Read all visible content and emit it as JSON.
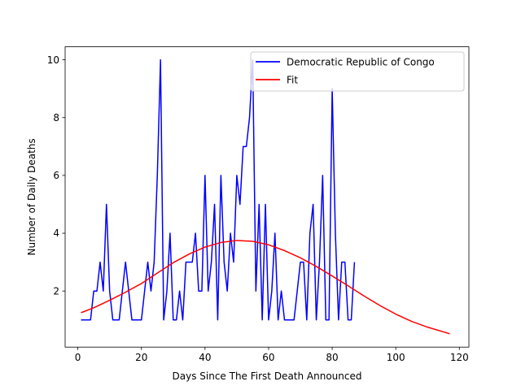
{
  "chart_data": {
    "type": "line",
    "xlabel": "Days Since The First Death Announced",
    "ylabel": "Number of Daily Deaths",
    "xlim": [
      -4,
      123
    ],
    "ylim": [
      0.06,
      10.45
    ],
    "xticks": [
      0,
      20,
      40,
      60,
      80,
      100,
      120
    ],
    "yticks": [
      2,
      4,
      6,
      8,
      10
    ],
    "grid": false,
    "legend_position": "top-right",
    "series": [
      {
        "name": "Democratic Republic of Congo",
        "color": "#0000ff",
        "x": [
          1,
          2,
          3,
          4,
          5,
          6,
          7,
          8,
          9,
          10,
          11,
          12,
          13,
          14,
          15,
          16,
          17,
          18,
          19,
          20,
          21,
          22,
          23,
          24,
          25,
          26,
          27,
          28,
          29,
          30,
          31,
          32,
          33,
          34,
          35,
          36,
          37,
          38,
          39,
          40,
          41,
          42,
          43,
          44,
          45,
          46,
          47,
          48,
          49,
          50,
          51,
          52,
          53,
          54,
          55,
          56,
          57,
          58,
          59,
          60,
          61,
          62,
          63,
          64,
          65,
          66,
          67,
          68,
          69,
          70,
          71,
          72,
          73,
          74,
          75,
          76,
          77,
          78,
          79,
          80,
          81,
          82,
          83,
          84,
          85,
          86,
          87
        ],
        "y": [
          1,
          1,
          1,
          1,
          2,
          2,
          3,
          2,
          5,
          2,
          1,
          1,
          1,
          2,
          3,
          2,
          1,
          1,
          1,
          1,
          2,
          3,
          2,
          3,
          6,
          10,
          1,
          2,
          4,
          1,
          1,
          2,
          1,
          3,
          3,
          3,
          4,
          2,
          2,
          6,
          2,
          3,
          5,
          1,
          6,
          3,
          2,
          4,
          3,
          6,
          5,
          7,
          7,
          8,
          10,
          2,
          5,
          1,
          5,
          1,
          2,
          4,
          1,
          2,
          1,
          1,
          1,
          1,
          2,
          3,
          3,
          1,
          4,
          5,
          1,
          3,
          6,
          1,
          1,
          9,
          4,
          1,
          3,
          3,
          1,
          1,
          3
        ]
      },
      {
        "name": "Fit",
        "color": "#ff0000",
        "x": [
          1,
          5,
          10,
          15,
          20,
          25,
          30,
          35,
          40,
          45,
          50,
          55,
          60,
          65,
          70,
          75,
          80,
          85,
          90,
          95,
          100,
          105,
          110,
          117
        ],
        "y": [
          1.25,
          1.42,
          1.68,
          1.96,
          2.26,
          2.62,
          2.98,
          3.28,
          3.52,
          3.68,
          3.75,
          3.72,
          3.6,
          3.4,
          3.15,
          2.85,
          2.52,
          2.18,
          1.83,
          1.5,
          1.2,
          0.95,
          0.75,
          0.52
        ]
      }
    ]
  }
}
